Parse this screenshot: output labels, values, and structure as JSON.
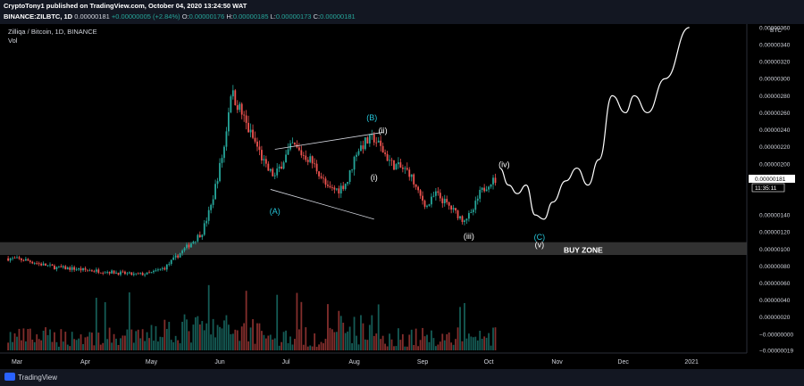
{
  "header": {
    "line1": "CryptoTony1 published on TradingView.com, October 04, 2020 13:24:50 WAT",
    "symbol": "BINANCE:ZILBTC, 1D",
    "last": "0.00000181",
    "change": "+0.00000005 (+2.84%)",
    "o_label": "O:",
    "o": "0.00000176",
    "h_label": "H:",
    "h": "0.00000185",
    "l_label": "L:",
    "l": "0.00000173",
    "c_label": "C:",
    "c": "0.00000181"
  },
  "legend": {
    "title": "Zilliqa / Bitcoin, 1D, BINANCE",
    "vol": "Vol"
  },
  "price_axis": {
    "currency": "BTC",
    "last_price": "0.00000181",
    "countdown": "11:35:11",
    "ticks": [
      "0.00000360",
      "0.00000340",
      "0.00000320",
      "0.00000300",
      "0.00000280",
      "0.00000260",
      "0.00000240",
      "0.00000220",
      "0.00000200",
      "0.00000180",
      "0.00000160",
      "0.00000140",
      "0.00000120",
      "0.00000100",
      "0.00000080",
      "0.00000060",
      "0.00000040",
      "0.00000020",
      "−0.00000000",
      "−0.00000019"
    ]
  },
  "footer": {
    "brand": "TradingView"
  },
  "chart_data": {
    "type": "candlestick",
    "title": "Zilliqa / Bitcoin, 1D, BINANCE",
    "y_unit": "BTC",
    "ylim": [
      -1.9e-07,
      3.62e-06
    ],
    "x_ticks": [
      "Mar",
      "Apr",
      "May",
      "Jun",
      "Jul",
      "Aug",
      "Sep",
      "Oct",
      "Nov",
      "Dec",
      "2021"
    ],
    "series": [
      {
        "name": "ZILBTC close (approx.)",
        "points": [
          [
            "2020-02-26",
            8.9e-07
          ],
          [
            "2020-03-05",
            8.7e-07
          ],
          [
            "2020-03-12",
            8.2e-07
          ],
          [
            "2020-03-19",
            7.8e-07
          ],
          [
            "2020-03-26",
            7.7e-07
          ],
          [
            "2020-04-02",
            7.5e-07
          ],
          [
            "2020-04-09",
            7.4e-07
          ],
          [
            "2020-04-16",
            7.2e-07
          ],
          [
            "2020-04-23",
            7e-07
          ],
          [
            "2020-04-30",
            7.1e-07
          ],
          [
            "2020-05-07",
            7.8e-07
          ],
          [
            "2020-05-14",
            9.5e-07
          ],
          [
            "2020-05-21",
            1.12e-06
          ],
          [
            "2020-05-24",
            1.2e-06
          ],
          [
            "2020-05-28",
            1.5e-06
          ],
          [
            "2020-05-31",
            1.85e-06
          ],
          [
            "2020-06-03",
            2.2e-06
          ],
          [
            "2020-06-06",
            2.85e-06
          ],
          [
            "2020-06-10",
            2.65e-06
          ],
          [
            "2020-06-14",
            2.4e-06
          ],
          [
            "2020-06-18",
            2.2e-06
          ],
          [
            "2020-06-22",
            1.95e-06
          ],
          [
            "2020-06-26",
            1.85e-06
          ],
          [
            "2020-06-30",
            2.05e-06
          ],
          [
            "2020-07-04",
            2.22e-06
          ],
          [
            "2020-07-08",
            2.12e-06
          ],
          [
            "2020-07-12",
            2.05e-06
          ],
          [
            "2020-07-16",
            1.9e-06
          ],
          [
            "2020-07-20",
            1.7e-06
          ],
          [
            "2020-07-25",
            1.7e-06
          ],
          [
            "2020-07-29",
            1.8e-06
          ],
          [
            "2020-08-02",
            2.15e-06
          ],
          [
            "2020-08-06",
            2.25e-06
          ],
          [
            "2020-08-10",
            2.3e-06
          ],
          [
            "2020-08-14",
            2.15e-06
          ],
          [
            "2020-08-18",
            2e-06
          ],
          [
            "2020-08-22",
            1.95e-06
          ],
          [
            "2020-08-26",
            1.9e-06
          ],
          [
            "2020-08-30",
            1.65e-06
          ],
          [
            "2020-09-03",
            1.5e-06
          ],
          [
            "2020-09-07",
            1.65e-06
          ],
          [
            "2020-09-11",
            1.55e-06
          ],
          [
            "2020-09-15",
            1.45e-06
          ],
          [
            "2020-09-19",
            1.35e-06
          ],
          [
            "2020-09-23",
            1.4e-06
          ],
          [
            "2020-09-27",
            1.65e-06
          ],
          [
            "2020-10-01",
            1.78e-06
          ],
          [
            "2020-10-04",
            1.81e-06
          ]
        ]
      }
    ],
    "projection": [
      [
        "2020-10-06",
        1.95e-06
      ],
      [
        "2020-10-10",
        1.75e-06
      ],
      [
        "2020-10-14",
        1.65e-06
      ],
      [
        "2020-10-18",
        1.75e-06
      ],
      [
        "2020-10-22",
        1.4e-06
      ],
      [
        "2020-10-26",
        1.35e-06
      ],
      [
        "2020-10-30",
        1.55e-06
      ],
      [
        "2020-11-05",
        1.8e-06
      ],
      [
        "2020-11-10",
        1.95e-06
      ],
      [
        "2020-11-15",
        1.75e-06
      ],
      [
        "2020-11-20",
        2.05e-06
      ],
      [
        "2020-11-26",
        2.8e-06
      ],
      [
        "2020-12-02",
        2.6e-06
      ],
      [
        "2020-12-06",
        2.8e-06
      ],
      [
        "2020-12-12",
        2.6e-06
      ],
      [
        "2020-12-20",
        3e-06
      ],
      [
        "2020-12-31",
        3.6e-06
      ]
    ],
    "buy_zone": {
      "label": "BUY ZONE",
      "low": 9.3e-07,
      "high": 1.08e-06
    },
    "wave_labels": [
      {
        "text": "(A)",
        "date": "2020-06-26",
        "value": 1.41e-06,
        "color": "#26c6da"
      },
      {
        "text": "(B)",
        "date": "2020-08-09",
        "value": 2.51e-06,
        "color": "#26c6da"
      },
      {
        "text": "(ii)",
        "date": "2020-08-14",
        "value": 2.36e-06,
        "color": "#ffffff"
      },
      {
        "text": "(i)",
        "date": "2020-08-10",
        "value": 1.81e-06,
        "color": "#ffffff"
      },
      {
        "text": "(iii)",
        "date": "2020-09-22",
        "value": 1.12e-06,
        "color": "#ffffff"
      },
      {
        "text": "(iv)",
        "date": "2020-10-08",
        "value": 1.96e-06,
        "color": "#ffffff"
      },
      {
        "text": "(C)",
        "date": "2020-10-24",
        "value": 1.11e-06,
        "color": "#26c6da"
      },
      {
        "text": "(v)",
        "date": "2020-10-24",
        "value": 1.02e-06,
        "color": "#ffffff"
      }
    ],
    "trendlines": [
      {
        "from": [
          "2020-06-26",
          2.17e-06
        ],
        "to": [
          "2020-08-14",
          2.37e-06
        ]
      },
      {
        "from": [
          "2020-06-24",
          1.7e-06
        ],
        "to": [
          "2020-08-10",
          1.35e-06
        ]
      }
    ],
    "colors": {
      "up": "#26a69a",
      "down": "#ef5350",
      "label_wave_major": "#26c6da",
      "label_wave_minor": "#ffffff"
    }
  }
}
